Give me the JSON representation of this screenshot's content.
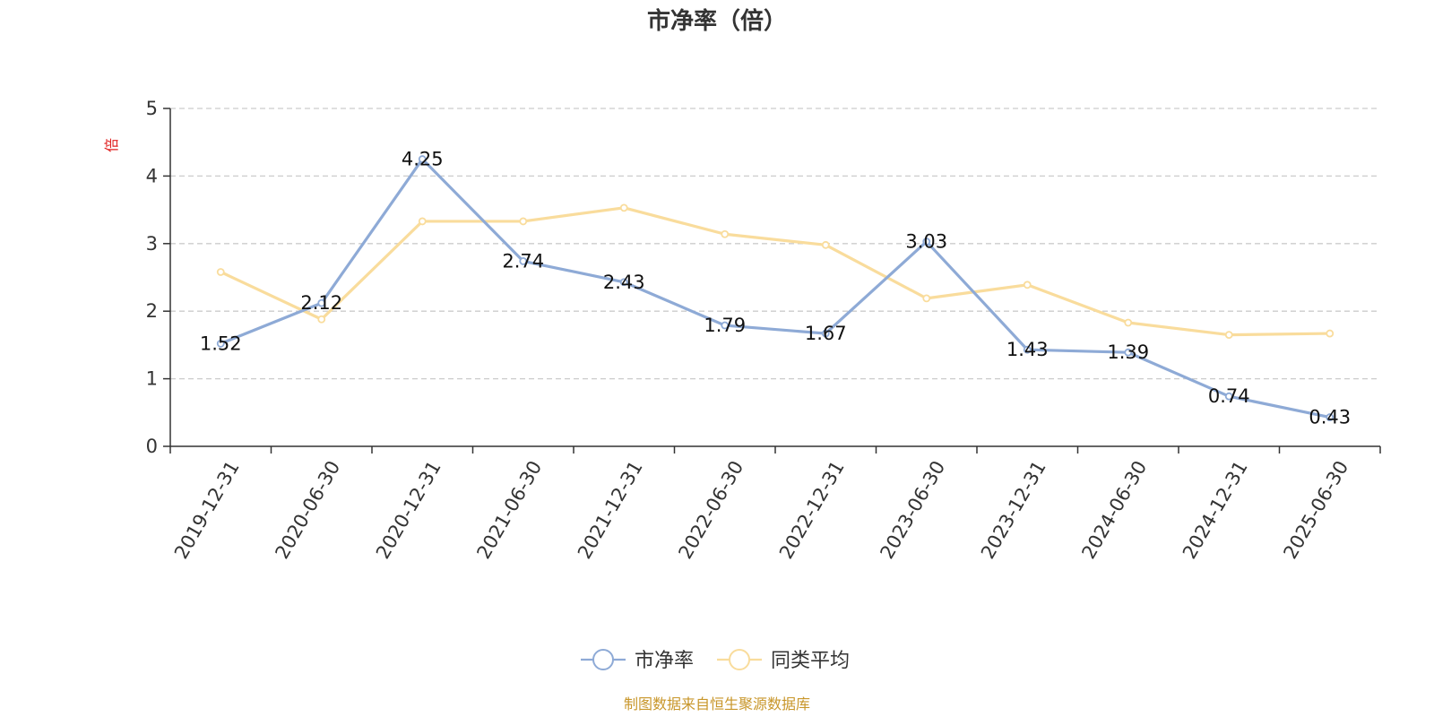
{
  "chart_data": {
    "type": "line",
    "title": "市净率（倍）",
    "ylabel": "倍",
    "categories": [
      "2019-12-31",
      "2020-06-30",
      "2020-12-31",
      "2021-06-30",
      "2021-12-31",
      "2022-06-30",
      "2022-12-31",
      "2023-06-30",
      "2023-12-31",
      "2024-06-30",
      "2024-12-31",
      "2025-06-30"
    ],
    "ylim": [
      0,
      5
    ],
    "yticks": [
      0,
      1,
      2,
      3,
      4,
      5
    ],
    "grid": true,
    "legend_position": "bottom-center",
    "series": [
      {
        "name": "市净率",
        "color": "#8eaad6",
        "values": [
          1.52,
          2.12,
          4.25,
          2.74,
          2.43,
          1.79,
          1.67,
          3.03,
          1.43,
          1.39,
          0.74,
          0.43
        ],
        "labels": [
          "1.52",
          "2.12",
          "4.25",
          "2.74",
          "2.43",
          "1.79",
          "1.67",
          "3.03",
          "1.43",
          "1.39",
          "0.74",
          "0.43"
        ]
      },
      {
        "name": "同类平均",
        "color": "#f9dc9c",
        "values": [
          2.58,
          1.88,
          3.33,
          3.33,
          3.53,
          3.14,
          2.98,
          2.19,
          2.39,
          1.83,
          1.65,
          1.67
        ]
      }
    ],
    "source": "制图数据来自恒生聚源数据库"
  }
}
